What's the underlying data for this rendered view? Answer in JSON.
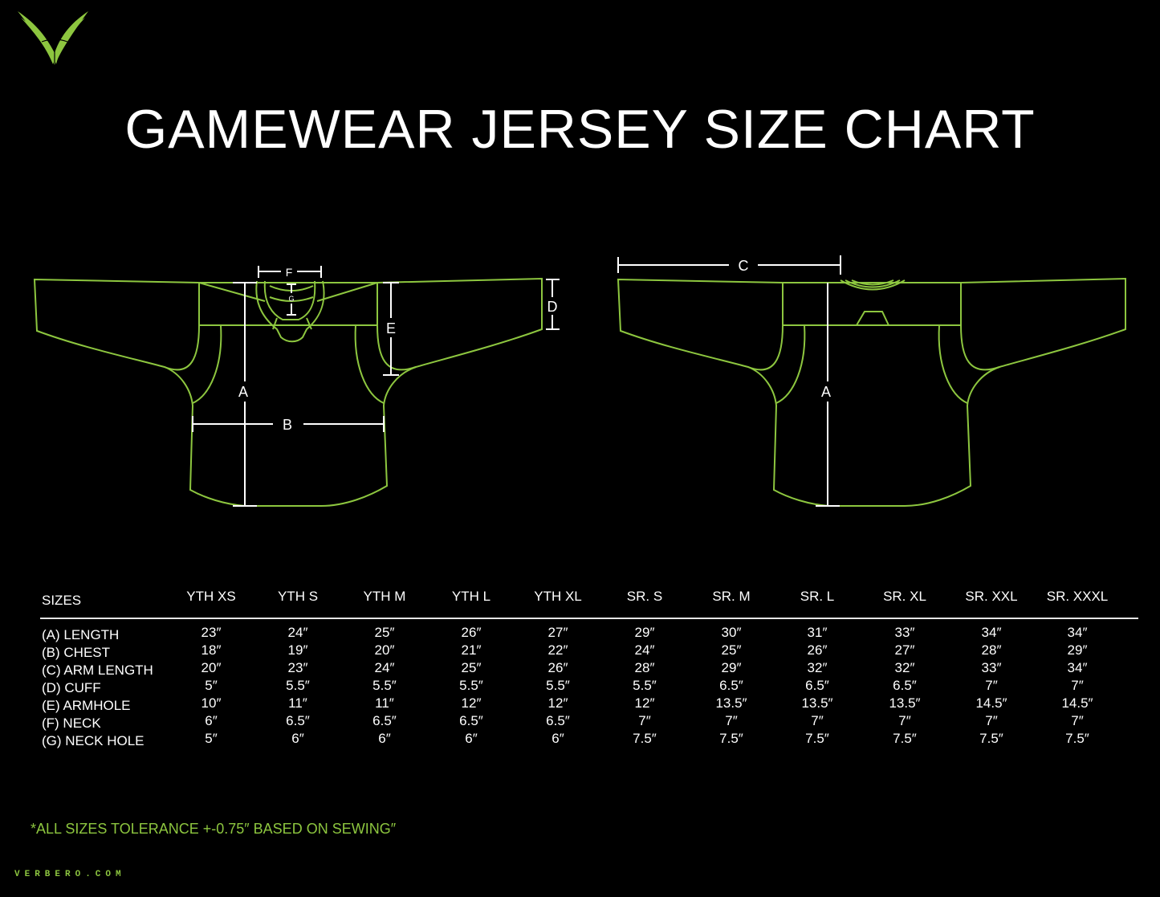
{
  "brand": {
    "name": "Verbero",
    "website": "VERBERO.COM",
    "accent_color": "#8dc63f",
    "logo_icon": "verbero-v-logo"
  },
  "title": "GAMEWEAR JERSEY SIZE CHART",
  "diagrams": {
    "front": {
      "labels": {
        "A": "A",
        "B": "B",
        "D": "D",
        "E": "E",
        "F": "F",
        "G": "G"
      }
    },
    "back": {
      "labels": {
        "A": "A",
        "C": "C"
      }
    }
  },
  "size_table": {
    "header_label": "SIZES",
    "sizes": [
      "YTH XS",
      "YTH S",
      "YTH M",
      "YTH L",
      "YTH XL",
      "SR. S",
      "SR. M",
      "SR. L",
      "SR. XL",
      "SR. XXL",
      "SR. XXXL"
    ],
    "rows": [
      {
        "label": "(A) LENGTH",
        "values": [
          "23″",
          "24″",
          "25″",
          "26″",
          "27″",
          "29″",
          "30″",
          "31″",
          "33″",
          "34″",
          "34″"
        ]
      },
      {
        "label": "(B) CHEST",
        "values": [
          "18″",
          "19″",
          "20″",
          "21″",
          "22″",
          "24″",
          "25″",
          "26″",
          "27″",
          "28″",
          "29″"
        ]
      },
      {
        "label": "(C) ARM LENGTH",
        "values": [
          "20″",
          "23″",
          "24″",
          "25″",
          "26″",
          "28″",
          "29″",
          "32″",
          "32″",
          "33″",
          "34″"
        ]
      },
      {
        "label": "(D) CUFF",
        "values": [
          "5″",
          "5.5″",
          "5.5″",
          "5.5″",
          "5.5″",
          "5.5″",
          "6.5″",
          "6.5″",
          "6.5″",
          "7″",
          "7″"
        ]
      },
      {
        "label": "(E) ARMHOLE",
        "values": [
          "10″",
          "11″",
          "11″",
          "12″",
          "12″",
          "12″",
          "13.5″",
          "13.5″",
          "13.5″",
          "14.5″",
          "14.5″"
        ]
      },
      {
        "label": "(F) NECK",
        "values": [
          "6″",
          "6.5″",
          "6.5″",
          "6.5″",
          "6.5″",
          "7″",
          "7″",
          "7″",
          "7″",
          "7″",
          "7″"
        ]
      },
      {
        "label": "(G) NECK HOLE",
        "values": [
          "5″",
          "6″",
          "6″",
          "6″",
          "6″",
          "7.5″",
          "7.5″",
          "7.5″",
          "7.5″",
          "7.5″",
          "7.5″"
        ]
      }
    ]
  },
  "note": "*ALL SIZES TOLERANCE +-0.75″ BASED ON SEWING″"
}
